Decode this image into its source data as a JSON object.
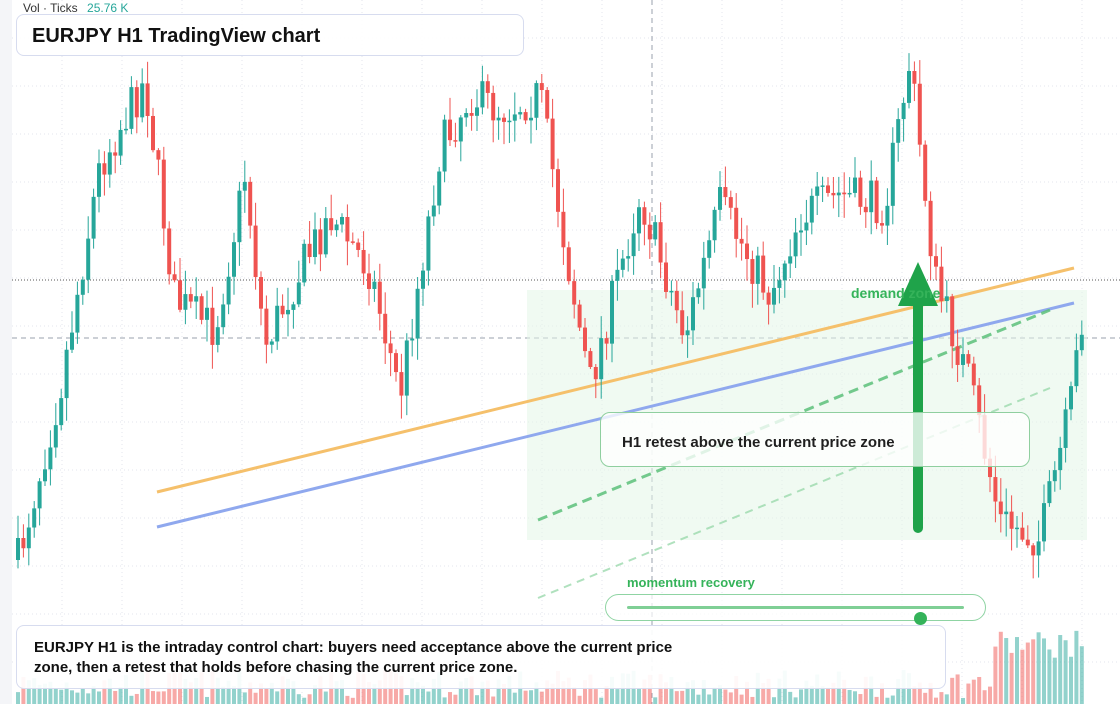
{
  "title": "EURJPY H1 TradingView chart",
  "volume_legend": {
    "label": "Vol · Ticks",
    "value": "25.76 K"
  },
  "annotations": {
    "callout": "H1 retest above the current price zone",
    "zone_label": "demand zone",
    "momentum_label": "momentum recovery",
    "momentum_level": 0.87,
    "description": "EURJPY H1 is the intraday control chart: buyers need acceptance above the current price zone, then a retest that holds before chasing the current price zone."
  },
  "colors": {
    "up": "#26a69a",
    "down": "#ef5350",
    "accent_green": "#35b35a",
    "orange_trendline": "#f5c06b",
    "blue_trendline": "#8fa8ee"
  },
  "chart_data": {
    "type": "candlestick",
    "candles": [
      {
        "o": 1.0,
        "h": 1.0,
        "l": 1.0,
        "c": 1.0
      }
    ]
  }
}
